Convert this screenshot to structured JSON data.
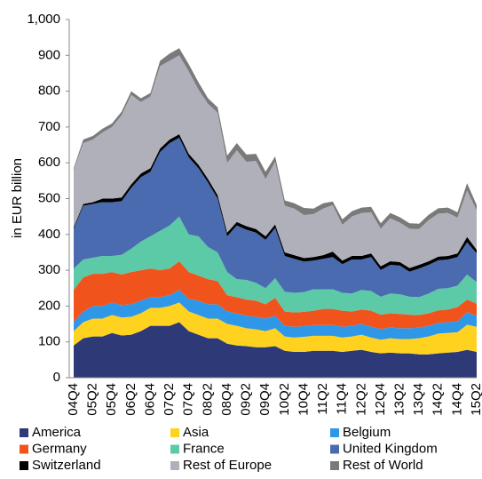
{
  "chart_data": {
    "type": "stacked_area",
    "y_label": "in EUR billion",
    "categories": [
      "04Q4",
      null,
      "05Q2",
      null,
      "05Q4",
      null,
      "06Q2",
      null,
      "06Q4",
      null,
      "07Q2",
      null,
      "07Q4",
      null,
      "08Q2",
      null,
      "08Q4",
      null,
      "09Q2",
      null,
      "09Q4",
      null,
      "10Q2",
      null,
      "10Q4",
      null,
      "11Q2",
      null,
      "11Q4",
      null,
      "12Q2",
      null,
      "12Q4",
      null,
      "13Q2",
      null,
      "13Q4",
      null,
      "14Q2",
      null,
      "14Q4",
      null,
      "15Q2"
    ],
    "series": [
      {
        "name": "America",
        "color": "#2e3a78",
        "values": [
          90,
          110,
          115,
          115,
          125,
          118,
          120,
          130,
          145,
          145,
          145,
          155,
          130,
          120,
          110,
          110,
          95,
          90,
          88,
          85,
          85,
          88,
          75,
          72,
          72,
          75,
          75,
          75,
          72,
          75,
          78,
          72,
          68,
          70,
          68,
          68,
          65,
          65,
          68,
          70,
          72,
          78,
          72
        ]
      },
      {
        "name": "Asia",
        "color": "#ffd21f",
        "values": [
          40,
          45,
          50,
          50,
          50,
          50,
          50,
          50,
          50,
          50,
          55,
          55,
          55,
          55,
          55,
          55,
          55,
          55,
          50,
          50,
          45,
          50,
          40,
          40,
          42,
          42,
          42,
          42,
          40,
          40,
          42,
          40,
          38,
          40,
          40,
          40,
          45,
          50,
          55,
          55,
          55,
          70,
          70
        ]
      },
      {
        "name": "Belgium",
        "color": "#2f97e8",
        "values": [
          25,
          30,
          35,
          35,
          35,
          35,
          35,
          35,
          30,
          30,
          30,
          35,
          35,
          40,
          40,
          40,
          35,
          35,
          35,
          35,
          35,
          35,
          30,
          30,
          30,
          30,
          30,
          30,
          30,
          30,
          30,
          30,
          30,
          30,
          30,
          30,
          30,
          30,
          30,
          30,
          30,
          35,
          30
        ]
      },
      {
        "name": "Germany",
        "color": "#f0541c",
        "values": [
          90,
          95,
          90,
          90,
          85,
          85,
          90,
          85,
          80,
          75,
          75,
          80,
          75,
          70,
          70,
          65,
          45,
          45,
          45,
          45,
          40,
          50,
          40,
          40,
          40,
          40,
          45,
          45,
          45,
          40,
          40,
          45,
          40,
          40,
          40,
          38,
          35,
          35,
          35,
          35,
          40,
          35,
          35
        ]
      },
      {
        "name": "France",
        "color": "#5cc9a7",
        "values": [
          60,
          50,
          45,
          50,
          45,
          55,
          65,
          80,
          90,
          110,
          120,
          125,
          105,
          110,
          90,
          80,
          65,
          50,
          55,
          50,
          45,
          55,
          55,
          55,
          55,
          60,
          55,
          55,
          50,
          50,
          55,
          55,
          50,
          55,
          55,
          50,
          50,
          55,
          60,
          60,
          60,
          70,
          60
        ]
      },
      {
        "name": "United Kingdom",
        "color": "#4b6bb0",
        "values": [
          110,
          150,
          150,
          150,
          150,
          150,
          170,
          180,
          180,
          220,
          230,
          220,
          215,
          190,
          180,
          150,
          100,
          150,
          140,
          140,
          135,
          140,
          100,
          95,
          85,
          80,
          85,
          90,
          80,
          95,
          85,
          95,
          75,
          80,
          80,
          70,
          80,
          80,
          80,
          80,
          80,
          90,
          80
        ]
      },
      {
        "name": "Switzerland",
        "color": "#000000",
        "values": [
          5,
          5,
          5,
          10,
          10,
          10,
          10,
          10,
          10,
          10,
          10,
          10,
          10,
          10,
          10,
          10,
          10,
          10,
          10,
          10,
          10,
          10,
          10,
          10,
          10,
          10,
          10,
          15,
          10,
          10,
          10,
          10,
          10,
          10,
          10,
          10,
          10,
          10,
          10,
          10,
          10,
          15,
          10
        ]
      },
      {
        "name": "Rest of Europe",
        "color": "#b0b0bb",
        "values": [
          160,
          170,
          175,
          185,
          200,
          230,
          250,
          200,
          200,
          230,
          220,
          220,
          230,
          210,
          210,
          230,
          195,
          200,
          180,
          190,
          160,
          175,
          130,
          130,
          120,
          120,
          130,
          130,
          100,
          110,
          120,
          115,
          105,
          120,
          110,
          110,
          100,
          115,
          120,
          120,
          100,
          130,
          110
        ]
      },
      {
        "name": "Rest of World",
        "color": "#7a7a7a",
        "values": [
          5,
          10,
          10,
          10,
          10,
          10,
          10,
          10,
          10,
          15,
          20,
          20,
          20,
          20,
          15,
          15,
          20,
          20,
          20,
          20,
          20,
          15,
          15,
          15,
          20,
          15,
          15,
          10,
          15,
          15,
          15,
          15,
          15,
          15,
          15,
          15,
          15,
          15,
          15,
          15,
          15,
          20,
          15
        ]
      }
    ],
    "ylim": [
      0,
      1000
    ],
    "yticks": [
      0,
      100,
      200,
      300,
      400,
      500,
      600,
      700,
      800,
      900,
      {
        "value": 1000,
        "label": "1,000"
      }
    ],
    "grid": false
  }
}
